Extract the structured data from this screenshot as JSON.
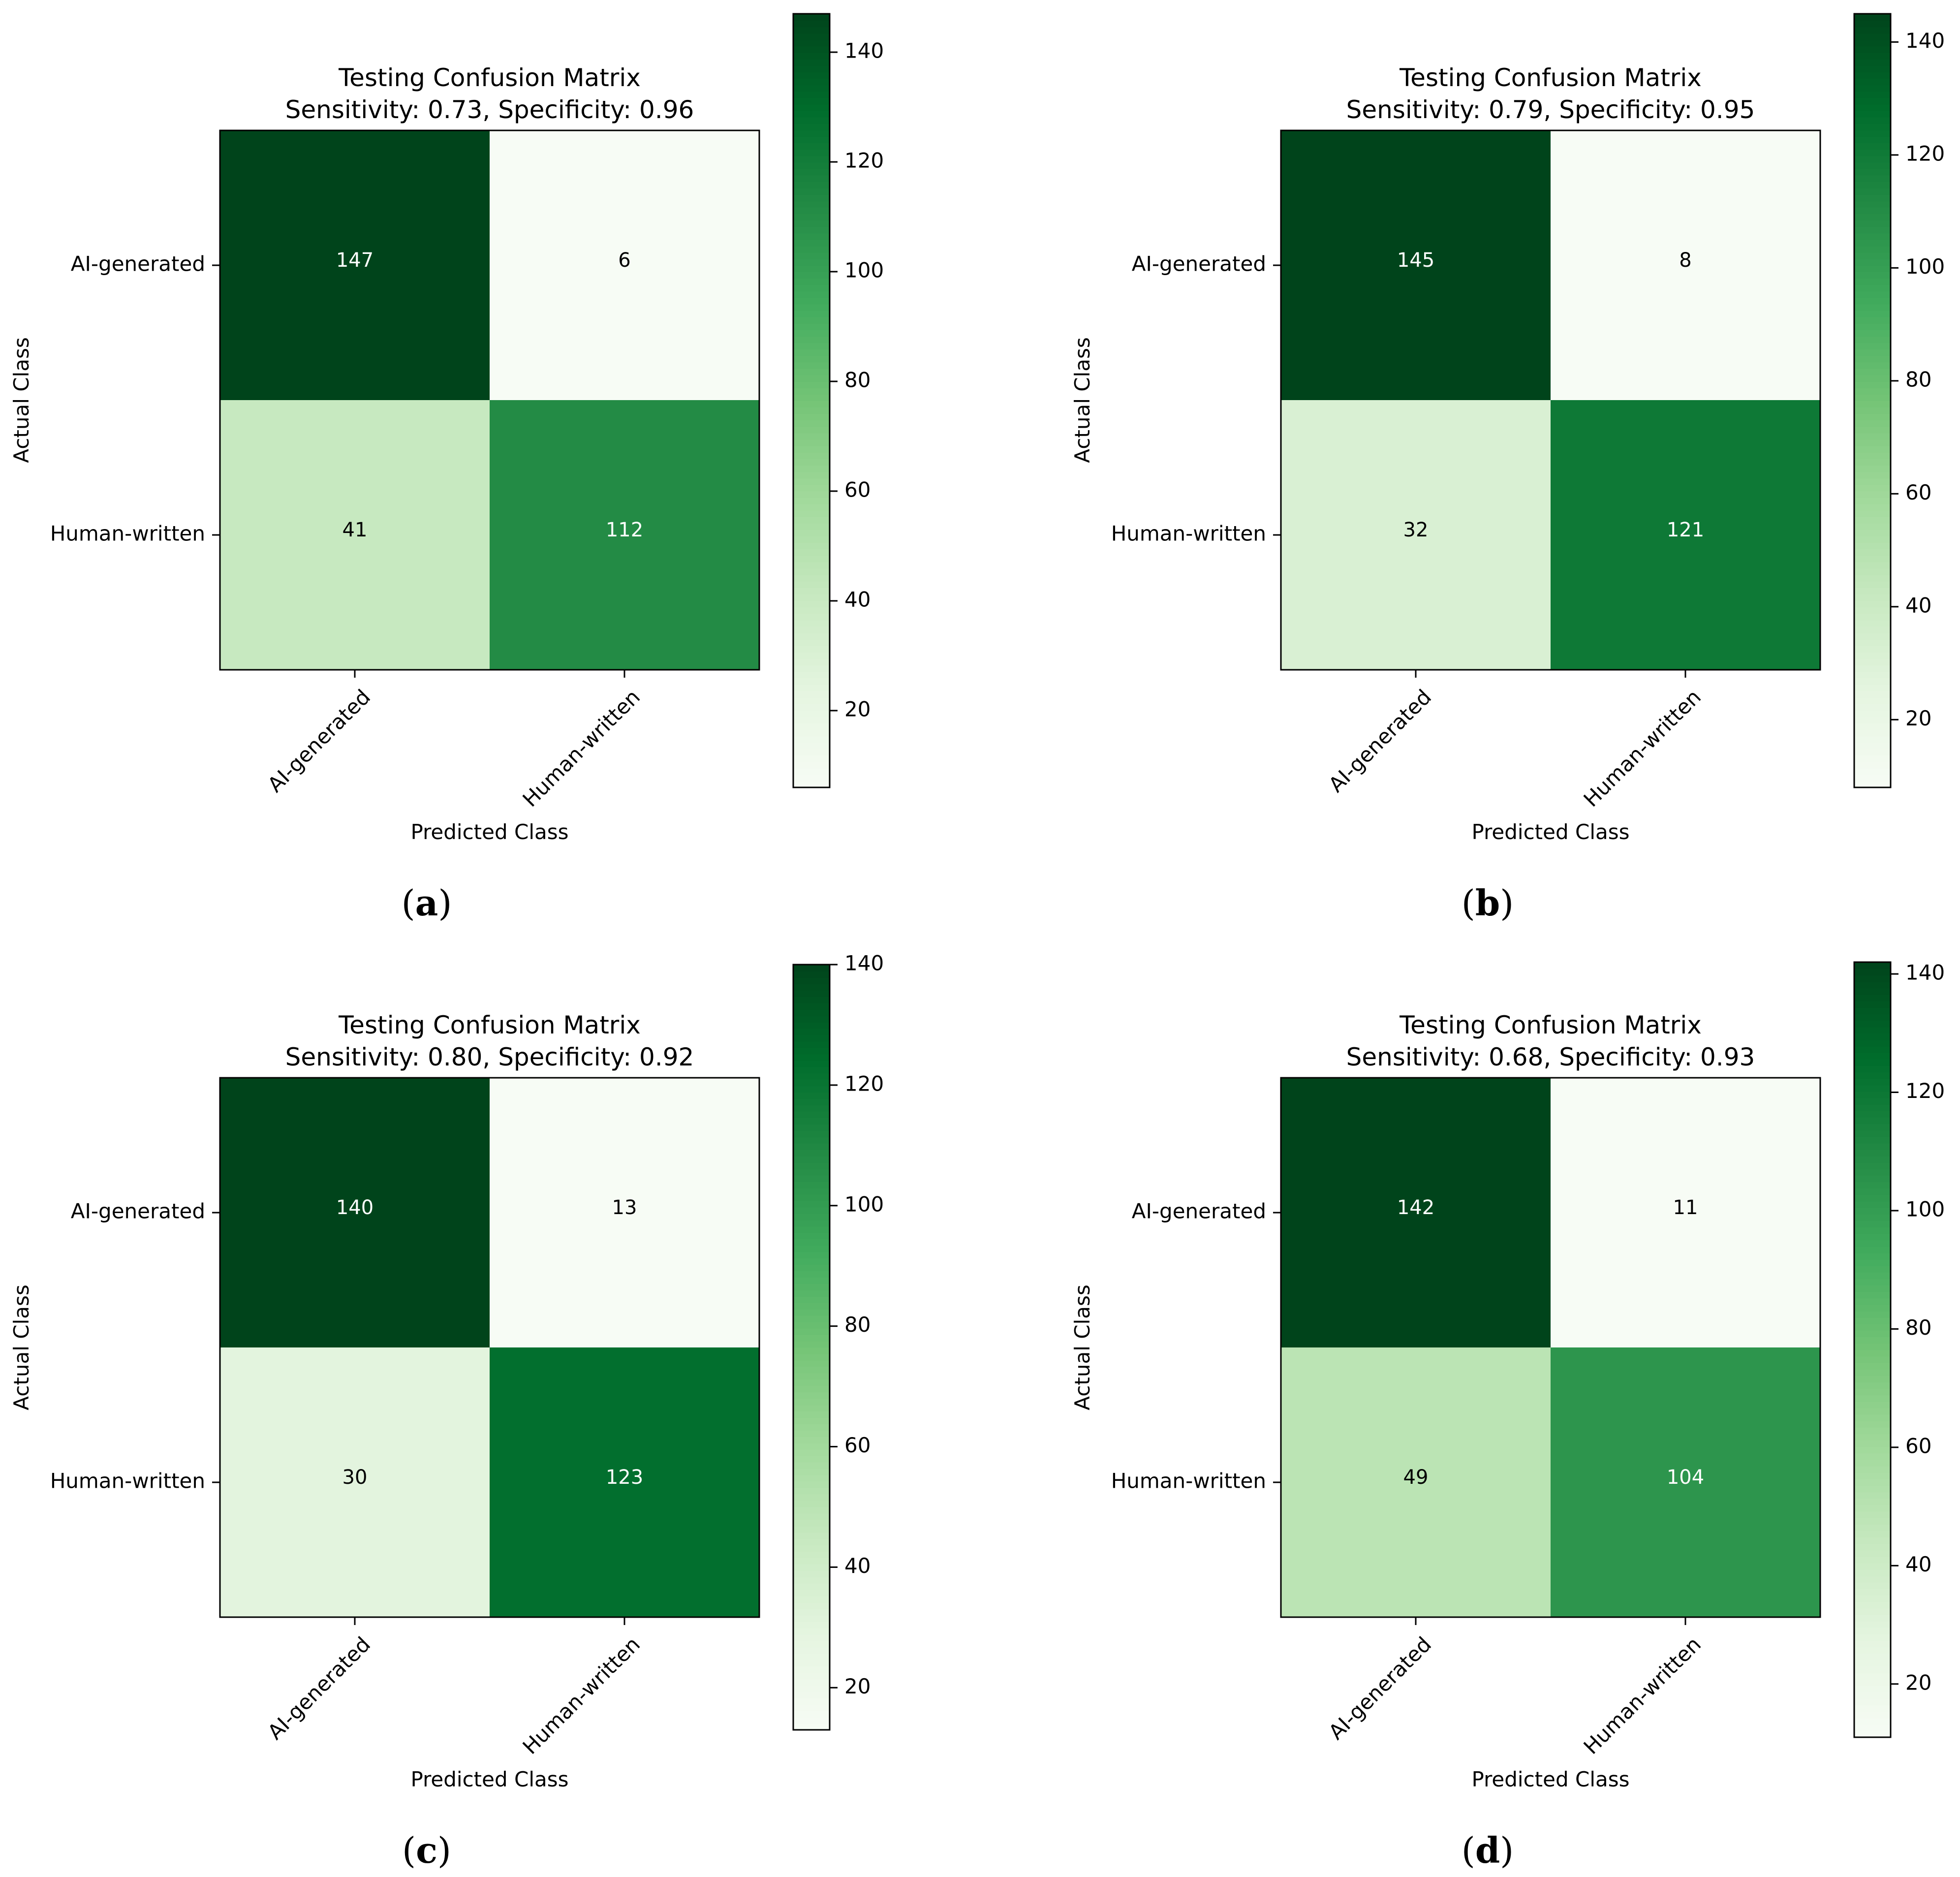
{
  "chart_data": [
    {
      "type": "heatmap",
      "panel_label": "a",
      "title": "Testing Confusion Matrix",
      "subtitle": "Sensitivity: 0.73, Specificity: 0.96",
      "xlabel": "Predicted Class",
      "ylabel": "Actual Class",
      "row_labels": [
        "AI-generated",
        "Human-written"
      ],
      "col_labels": [
        "AI-generated",
        "Human-written"
      ],
      "matrix": [
        [
          147,
          6
        ],
        [
          41,
          112
        ]
      ],
      "colormap": "Greens",
      "color_range": [
        6,
        147
      ],
      "colorbar_ticks": [
        20,
        40,
        60,
        80,
        100,
        120,
        140
      ]
    },
    {
      "type": "heatmap",
      "panel_label": "b",
      "title": "Testing Confusion Matrix",
      "subtitle": "Sensitivity: 0.79, Specificity: 0.95",
      "xlabel": "Predicted Class",
      "ylabel": "Actual Class",
      "row_labels": [
        "AI-generated",
        "Human-written"
      ],
      "col_labels": [
        "AI-generated",
        "Human-written"
      ],
      "matrix": [
        [
          145,
          8
        ],
        [
          32,
          121
        ]
      ],
      "colormap": "Greens",
      "color_range": [
        8,
        145
      ],
      "colorbar_ticks": [
        20,
        40,
        60,
        80,
        100,
        120,
        140
      ]
    },
    {
      "type": "heatmap",
      "panel_label": "c",
      "title": "Testing Confusion Matrix",
      "subtitle": "Sensitivity: 0.80, Specificity: 0.92",
      "xlabel": "Predicted Class",
      "ylabel": "Actual Class",
      "row_labels": [
        "AI-generated",
        "Human-written"
      ],
      "col_labels": [
        "AI-generated",
        "Human-written"
      ],
      "matrix": [
        [
          140,
          13
        ],
        [
          30,
          123
        ]
      ],
      "colormap": "Greens",
      "color_range": [
        13,
        140
      ],
      "colorbar_ticks": [
        20,
        40,
        60,
        80,
        100,
        120,
        140
      ]
    },
    {
      "type": "heatmap",
      "panel_label": "d",
      "title": "Testing Confusion Matrix",
      "subtitle": "Sensitivity: 0.68, Specificity: 0.93",
      "xlabel": "Predicted Class",
      "ylabel": "Actual Class",
      "row_labels": [
        "AI-generated",
        "Human-written"
      ],
      "col_labels": [
        "AI-generated",
        "Human-written"
      ],
      "matrix": [
        [
          142,
          11
        ],
        [
          49,
          104
        ]
      ],
      "colormap": "Greens",
      "color_range": [
        11,
        142
      ],
      "colorbar_ticks": [
        20,
        40,
        60,
        80,
        100,
        120,
        140
      ]
    }
  ]
}
